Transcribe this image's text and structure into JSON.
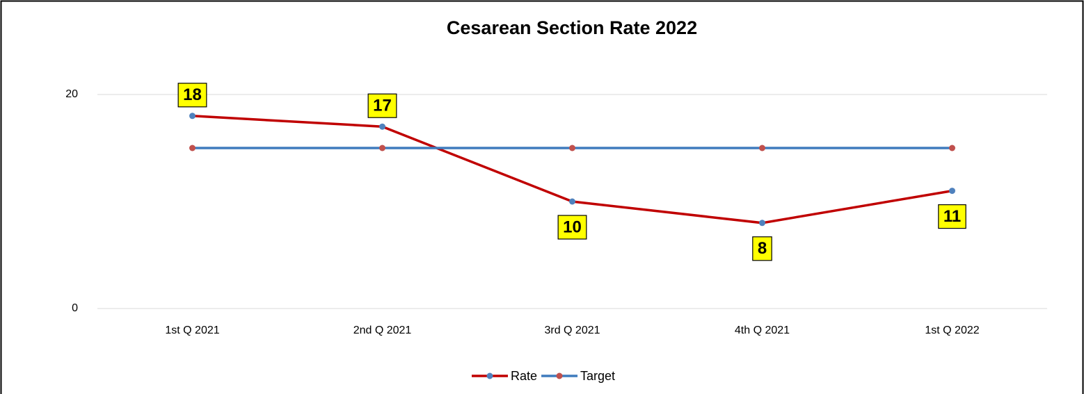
{
  "chart_data": {
    "type": "line",
    "title": "Cesarean Section Rate 2022",
    "categories": [
      "1st  Q 2021",
      "2nd Q 2021",
      "3rd Q 2021",
      "4th Q 2021",
      "1st  Q 2022"
    ],
    "series": [
      {
        "name": "Rate",
        "color": "#c00000",
        "marker_color": "#4f81bd",
        "values": [
          18,
          17,
          10,
          8,
          11
        ]
      },
      {
        "name": "Target",
        "color": "#3f7bbd",
        "marker_color": "#c0504d",
        "values": [
          15,
          15,
          15,
          15,
          15
        ]
      }
    ],
    "ylim": [
      0,
      20
    ],
    "yticks": [
      0,
      20
    ],
    "grid": true,
    "legend": "bottom"
  }
}
